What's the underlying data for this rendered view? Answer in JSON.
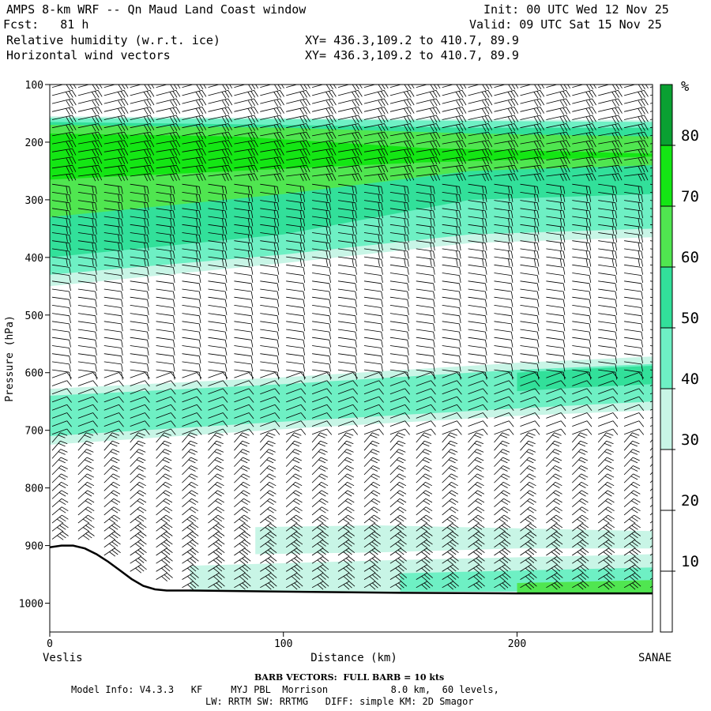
{
  "header": {
    "title": "AMPS 8-km WRF -- Qn Maud Land Coast window",
    "fcst_label": "Fcst:",
    "fcst_value": "81 h",
    "field1": "Relative humidity (w.r.t. ice)",
    "field2": "Horizontal wind vectors",
    "init_label": "Init:",
    "init_value": "00 UTC Wed 12 Nov 25",
    "valid_label": "Valid:",
    "valid_value": "09 UTC Sat 15 Nov 25",
    "xy1": "XY= 436.3,109.2 to 410.7, 89.9",
    "xy2": "XY= 436.3,109.2 to 410.7, 89.9"
  },
  "footer": {
    "barb_note": "BARB VECTORS:  FULL BARB = 10 kts",
    "model_info": "Model Info: V4.3.3   KF     MYJ PBL  Morrison           8.0 km,  60 levels,",
    "physics": "LW: RRTM SW: RRTMG   DIFF: simple KM: 2D Smagor"
  },
  "colors": {
    "rh_30_40": "#c8f5e6",
    "rh_40_50": "#6ef0c4",
    "rh_50_60": "#32e09a",
    "rh_60_70": "#50e650",
    "rh_70_80": "#14e614",
    "rh_80_plus": "#0aa032",
    "terrain": "#000000",
    "barb": "#000000"
  },
  "chart_data": {
    "type": "cross-section",
    "title": "Relative humidity (w.r.t. ice) / Horizontal wind vectors",
    "xlabel": "Distance (km)",
    "ylabel": "Pressure (hPa)",
    "xlim": [
      0,
      258
    ],
    "ylim": [
      1050,
      100
    ],
    "x_ticks": [
      0,
      100,
      200
    ],
    "x_tick_labels": [
      "0",
      "100",
      "200"
    ],
    "y_ticks": [
      100,
      200,
      300,
      400,
      500,
      600,
      700,
      800,
      900,
      1000
    ],
    "y_tick_labels": [
      "100",
      "200",
      "300",
      "400",
      "500",
      "600",
      "700",
      "800",
      "900",
      "1000"
    ],
    "left_endpoint": "Veslis",
    "right_endpoint": "SANAE",
    "colorbar": {
      "unit": "%",
      "levels": [
        10,
        20,
        30,
        40,
        50,
        60,
        70,
        80
      ],
      "level_labels": [
        "10",
        "20",
        "30",
        "40",
        "50",
        "60",
        "70",
        "80"
      ]
    },
    "terrain_profile": [
      {
        "x": 0,
        "p": 903
      },
      {
        "x": 5,
        "p": 900
      },
      {
        "x": 10,
        "p": 900
      },
      {
        "x": 15,
        "p": 905
      },
      {
        "x": 20,
        "p": 915
      },
      {
        "x": 25,
        "p": 928
      },
      {
        "x": 30,
        "p": 943
      },
      {
        "x": 35,
        "p": 958
      },
      {
        "x": 40,
        "p": 970
      },
      {
        "x": 45,
        "p": 976
      },
      {
        "x": 50,
        "p": 978
      },
      {
        "x": 60,
        "p": 978
      },
      {
        "x": 100,
        "p": 980
      },
      {
        "x": 150,
        "p": 982
      },
      {
        "x": 200,
        "p": 983
      },
      {
        "x": 258,
        "p": 983
      }
    ],
    "rh_layers": [
      {
        "range": "30-40",
        "color": "#c8f5e6",
        "top": [
          [
            0,
            155
          ],
          [
            100,
            158
          ],
          [
            180,
            160
          ],
          [
            258,
            162
          ]
        ],
        "bottom": [
          [
            0,
            450
          ],
          [
            100,
            410
          ],
          [
            180,
            375
          ],
          [
            258,
            365
          ]
        ]
      },
      {
        "range": "40-50",
        "color": "#6ef0c4",
        "top": [
          [
            0,
            158
          ],
          [
            100,
            160
          ],
          [
            180,
            163
          ],
          [
            258,
            165
          ]
        ],
        "bottom": [
          [
            0,
            430
          ],
          [
            100,
            395
          ],
          [
            180,
            360
          ],
          [
            258,
            350
          ]
        ]
      },
      {
        "range": "50-60",
        "color": "#32e09a",
        "top": [
          [
            0,
            165
          ],
          [
            100,
            170
          ],
          [
            180,
            175
          ],
          [
            258,
            175
          ]
        ],
        "bottom": [
          [
            0,
            400
          ],
          [
            100,
            360
          ],
          [
            180,
            300
          ],
          [
            258,
            290
          ]
        ]
      },
      {
        "range": "60-70",
        "color": "#50e650",
        "top": [
          [
            0,
            170
          ],
          [
            100,
            175
          ],
          [
            180,
            185
          ],
          [
            258,
            190
          ]
        ],
        "bottom": [
          [
            0,
            330
          ],
          [
            100,
            290
          ],
          [
            180,
            250
          ],
          [
            258,
            240
          ]
        ]
      },
      {
        "range": "70-80",
        "color": "#14e614",
        "top": [
          [
            0,
            185
          ],
          [
            80,
            190
          ],
          [
            160,
            210
          ],
          [
            258,
            220
          ]
        ],
        "bottom": [
          [
            0,
            265
          ],
          [
            80,
            250
          ],
          [
            160,
            235
          ],
          [
            258,
            225
          ]
        ]
      },
      {
        "range": "30-40",
        "color": "#c8f5e6",
        "top": [
          [
            0,
            628
          ],
          [
            100,
            608
          ],
          [
            200,
            583
          ],
          [
            258,
            572
          ]
        ],
        "bottom": [
          [
            0,
            725
          ],
          [
            100,
            698
          ],
          [
            200,
            675
          ],
          [
            258,
            665
          ]
        ]
      },
      {
        "range": "40-50",
        "color": "#6ef0c4",
        "top": [
          [
            0,
            640
          ],
          [
            100,
            620
          ],
          [
            200,
            595
          ],
          [
            258,
            585
          ]
        ],
        "bottom": [
          [
            0,
            710
          ],
          [
            100,
            685
          ],
          [
            200,
            662
          ],
          [
            258,
            650
          ]
        ]
      },
      {
        "range": "50-60",
        "color": "#32e09a",
        "top": [
          [
            200,
            600
          ],
          [
            230,
            593
          ],
          [
            258,
            588
          ]
        ],
        "bottom": [
          [
            200,
            632
          ],
          [
            230,
            625
          ],
          [
            258,
            620
          ]
        ]
      },
      {
        "range": "30-40",
        "color": "#c8f5e6",
        "top": [
          [
            88,
            868
          ],
          [
            140,
            865
          ],
          [
            200,
            870
          ],
          [
            258,
            875
          ]
        ],
        "bottom": [
          [
            88,
            915
          ],
          [
            140,
            912
          ],
          [
            200,
            905
          ],
          [
            258,
            905
          ]
        ]
      },
      {
        "range": "30-40",
        "color": "#c8f5e6",
        "top": [
          [
            60,
            935
          ],
          [
            150,
            925
          ],
          [
            258,
            915
          ]
        ],
        "bottom": [
          [
            60,
            980
          ],
          [
            150,
            980
          ],
          [
            258,
            980
          ]
        ]
      },
      {
        "range": "40-50",
        "color": "#6ef0c4",
        "top": [
          [
            150,
            948
          ],
          [
            258,
            938
          ]
        ],
        "bottom": [
          [
            150,
            980
          ],
          [
            258,
            980
          ]
        ]
      },
      {
        "range": "60-70",
        "color": "#50e650",
        "top": [
          [
            200,
            965
          ],
          [
            258,
            960
          ]
        ],
        "bottom": [
          [
            200,
            982
          ],
          [
            258,
            982
          ]
        ]
      }
    ]
  }
}
